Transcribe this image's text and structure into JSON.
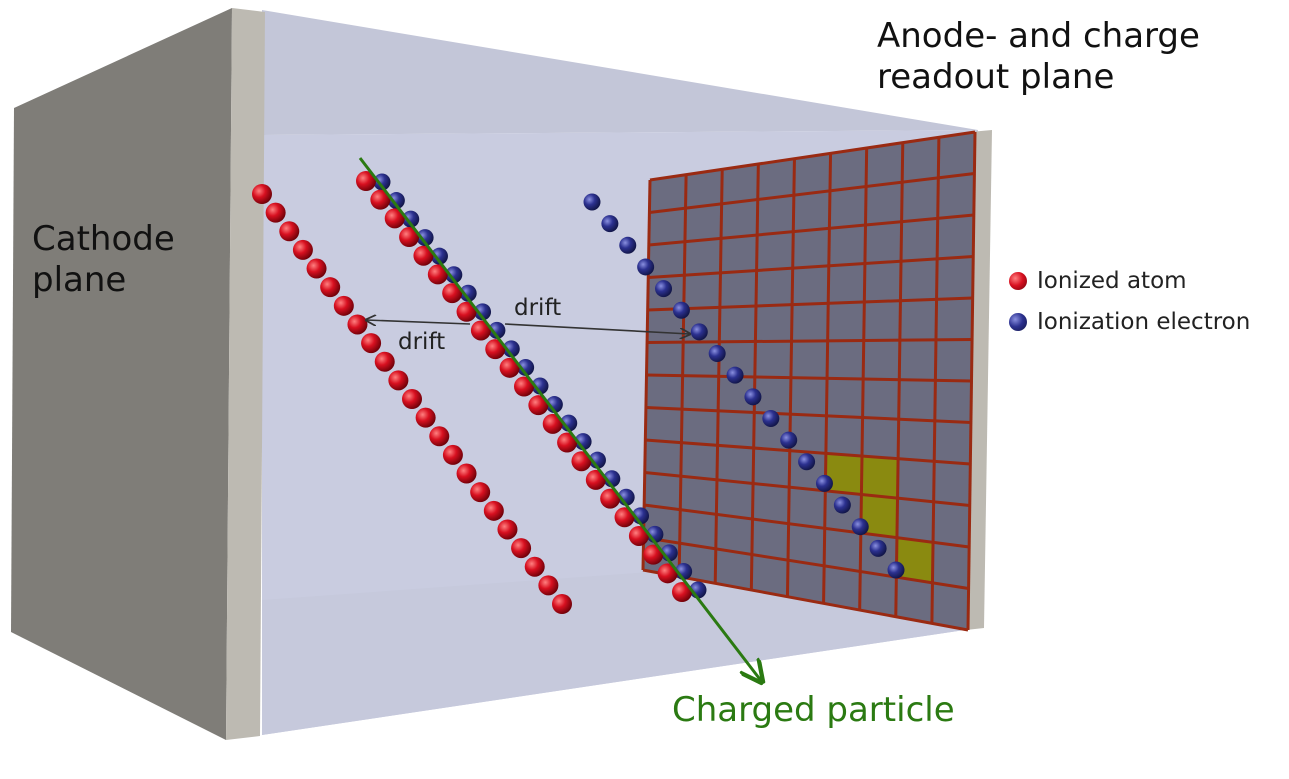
{
  "labels": {
    "cathode": "Cathode\nplane",
    "anode": "Anode- and charge\nreadout plane",
    "drift_left": "drift",
    "drift_right": "drift",
    "particle": "Charged particle"
  },
  "legend": [
    {
      "label": "Ionized atom",
      "color": "#c8101e"
    },
    {
      "label": "Ionization electron",
      "color": "#2a2f8c"
    }
  ],
  "colors": {
    "cathode_face": "#7f7d78",
    "cathode_edge": "#bdbab2",
    "volume": "#c9cce0",
    "volume_top": "#c3c6d8",
    "readout_plane": "#6b6c80",
    "readout_grid": "#9a2a12",
    "hit_pad": "#8a8a10",
    "track": "#2b7a12",
    "arrow": "#333333"
  },
  "readout_grid": {
    "columns": 9,
    "rows": 12
  }
}
